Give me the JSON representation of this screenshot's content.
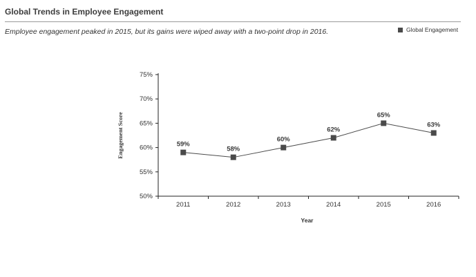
{
  "header": {
    "title": "Global Trends in Employee Engagement",
    "subtitle": "Employee engagement peaked in 2015, but its gains were wiped away with a two-point drop in 2016."
  },
  "legend": {
    "label": "Global Engagement"
  },
  "colors": {
    "series": "#4a4a4a",
    "axis": "#222222"
  },
  "chart_data": {
    "type": "line",
    "title": "Global Trends in Employee Engagement",
    "subtitle": "Employee engagement peaked in 2015, but its gains were wiped away with a two-point drop in 2016.",
    "xlabel": "Year",
    "ylabel": "Engagement Score",
    "categories": [
      "2011",
      "2012",
      "2013",
      "2014",
      "2015",
      "2016"
    ],
    "series": [
      {
        "name": "Global Engagement",
        "values": [
          59,
          58,
          60,
          62,
          65,
          63
        ],
        "labels": [
          "59%",
          "58%",
          "60%",
          "62%",
          "65%",
          "63%"
        ]
      }
    ],
    "ylim": [
      50,
      75
    ],
    "yticks": [
      50,
      55,
      60,
      65,
      70,
      75
    ],
    "ytick_labels": [
      "50%",
      "55%",
      "60%",
      "65%",
      "70%",
      "75%"
    ],
    "grid": false,
    "legend_position": "top-right"
  }
}
